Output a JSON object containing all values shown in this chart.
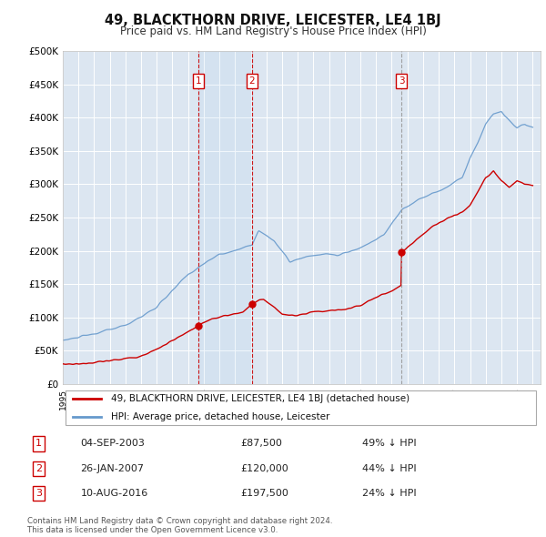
{
  "title": "49, BLACKTHORN DRIVE, LEICESTER, LE4 1BJ",
  "subtitle": "Price paid vs. HM Land Registry's House Price Index (HPI)",
  "property_color": "#cc0000",
  "hpi_color": "#6699cc",
  "plot_bg_color": "#dce6f1",
  "ylim": [
    0,
    500000
  ],
  "yticks": [
    0,
    50000,
    100000,
    150000,
    200000,
    250000,
    300000,
    350000,
    400000,
    450000,
    500000
  ],
  "ytick_labels": [
    "£0",
    "£50K",
    "£100K",
    "£150K",
    "£200K",
    "£250K",
    "£300K",
    "£350K",
    "£400K",
    "£450K",
    "£500K"
  ],
  "xlim_start": 1995,
  "xlim_end": 2025.5,
  "transactions": [
    {
      "num": 1,
      "date": "2003-09-04",
      "price": 87500,
      "hpi_pct": "49%",
      "x_approx": 2003.67,
      "vline_color": "#cc0000",
      "vline_style": "dashed"
    },
    {
      "num": 2,
      "date": "2007-01-26",
      "price": 120000,
      "hpi_pct": "44%",
      "x_approx": 2007.07,
      "vline_color": "#cc0000",
      "vline_style": "dashed"
    },
    {
      "num": 3,
      "date": "2016-08-10",
      "price": 197500,
      "hpi_pct": "24%",
      "x_approx": 2016.61,
      "vline_color": "#999999",
      "vline_style": "dashed"
    }
  ],
  "shade_between": [
    1,
    2
  ],
  "legend_label_property": "49, BLACKTHORN DRIVE, LEICESTER, LE4 1BJ (detached house)",
  "legend_label_hpi": "HPI: Average price, detached house, Leicester",
  "footer": "Contains HM Land Registry data © Crown copyright and database right 2024.\nThis data is licensed under the Open Government Licence v3.0.",
  "table_rows": [
    [
      "1",
      "04-SEP-2003",
      "£87,500",
      "49% ↓ HPI"
    ],
    [
      "2",
      "26-JAN-2007",
      "£120,000",
      "44% ↓ HPI"
    ],
    [
      "3",
      "10-AUG-2016",
      "£197,500",
      "24% ↓ HPI"
    ]
  ]
}
